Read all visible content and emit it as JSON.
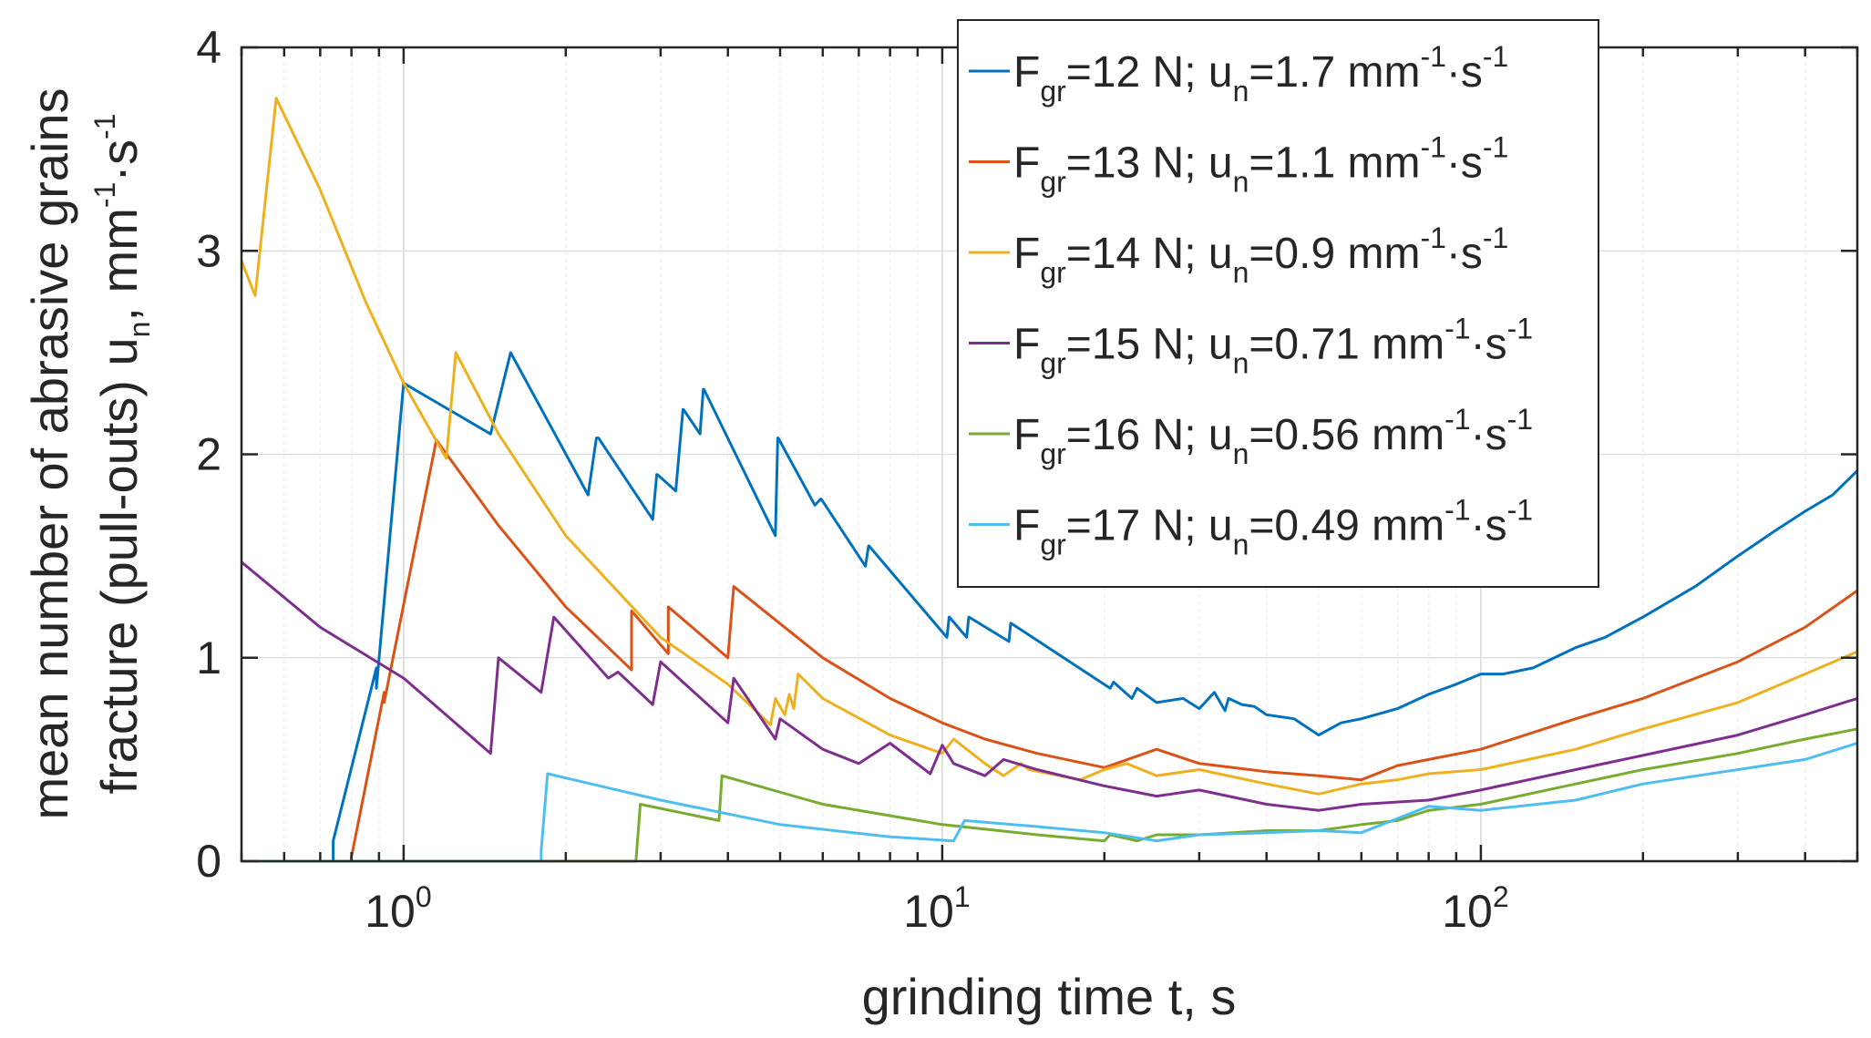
{
  "chart_data": {
    "type": "line",
    "title": "",
    "xlabel": "grinding time t, s",
    "ylabel_line1": "mean number of abrasive grains",
    "ylabel_line2": "fracture (pull-outs) u",
    "ylabel_line2_sub": "n",
    "ylabel_line2_unit": ", mm",
    "ylabel_line2_unit_sup1": "-1",
    "ylabel_line2_unit_dot": "·s",
    "ylabel_line2_unit_sup2": "-1",
    "xscale": "log",
    "xlim": [
      0.5,
      500
    ],
    "ylim": [
      0,
      4
    ],
    "xticks": [
      {
        "value": 1,
        "base": "10",
        "exp": "0"
      },
      {
        "value": 10,
        "base": "10",
        "exp": "1"
      },
      {
        "value": 100,
        "base": "10",
        "exp": "2"
      }
    ],
    "yticks": [
      {
        "value": 0,
        "label": "0"
      },
      {
        "value": 1,
        "label": "1"
      },
      {
        "value": 2,
        "label": "2"
      },
      {
        "value": 3,
        "label": "3"
      },
      {
        "value": 4,
        "label": "4"
      }
    ],
    "grid": true,
    "legend_position": "top-right",
    "series": [
      {
        "color": "#0072BD",
        "legend": {
          "f": "F",
          "f_sub": "gr",
          "f_val": "=12 N; u",
          "u_sub": "n",
          "u_val": "=1.7 mm",
          "sup1": "-1",
          "dot": "·s",
          "sup2": "-1"
        },
        "x": [
          0.5,
          0.74,
          0.74,
          0.89,
          0.89,
          1.0,
          1.0,
          1.45,
          1.58,
          1.58,
          2.2,
          2.28,
          2.3,
          2.9,
          2.95,
          2.96,
          3.2,
          3.3,
          3.31,
          3.55,
          3.6,
          3.61,
          4.9,
          4.95,
          4.96,
          5.8,
          5.95,
          5.96,
          7.2,
          7.3,
          7.31,
          10.2,
          10.3,
          10.31,
          11.1,
          11.2,
          11.21,
          13.3,
          13.4,
          13.41,
          20.5,
          20.8,
          22.5,
          23.0,
          25,
          28,
          30,
          32,
          33.5,
          34,
          36,
          38,
          40,
          45,
          50,
          55,
          60,
          70,
          80,
          90,
          100,
          110,
          125,
          150,
          170,
          200,
          250,
          300,
          350,
          400,
          450,
          500
        ],
        "y": [
          0,
          0,
          0.1,
          0.95,
          0.85,
          2.35,
          2.35,
          2.1,
          2.5,
          2.5,
          1.8,
          2.08,
          2.08,
          1.68,
          1.9,
          1.9,
          1.82,
          2.22,
          2.22,
          2.1,
          2.32,
          2.32,
          1.6,
          2.08,
          2.08,
          1.75,
          1.78,
          1.78,
          1.45,
          1.55,
          1.55,
          1.1,
          1.2,
          1.2,
          1.1,
          1.2,
          1.2,
          1.08,
          1.17,
          1.17,
          0.85,
          0.88,
          0.8,
          0.85,
          0.78,
          0.8,
          0.75,
          0.83,
          0.74,
          0.8,
          0.77,
          0.76,
          0.72,
          0.7,
          0.62,
          0.68,
          0.7,
          0.75,
          0.82,
          0.87,
          0.92,
          0.92,
          0.95,
          1.05,
          1.1,
          1.2,
          1.35,
          1.5,
          1.62,
          1.72,
          1.8,
          1.92
        ]
      },
      {
        "color": "#D95319",
        "legend": {
          "f": "F",
          "f_sub": "gr",
          "f_val": "=13 N; u",
          "u_sub": "n",
          "u_val": "=1.1 mm",
          "sup1": "-1",
          "dot": "·s",
          "sup2": "-1"
        },
        "x": [
          0.5,
          0.8,
          0.8,
          0.92,
          0.92,
          1.15,
          1.5,
          2.0,
          2.65,
          2.65,
          3.1,
          3.1,
          4.0,
          4.1,
          4.1,
          6.0,
          8.0,
          10.0,
          12.0,
          15.0,
          20.0,
          25.0,
          30.0,
          40.0,
          50.0,
          60.0,
          70.0,
          80.0,
          100.0,
          150.0,
          200.0,
          300.0,
          400.0,
          500.0
        ],
        "y": [
          0,
          0,
          0.02,
          0.83,
          0.78,
          2.07,
          1.65,
          1.25,
          0.94,
          1.23,
          1.02,
          1.25,
          1.0,
          1.35,
          1.35,
          1.0,
          0.8,
          0.68,
          0.6,
          0.53,
          0.46,
          0.55,
          0.48,
          0.44,
          0.42,
          0.4,
          0.47,
          0.5,
          0.55,
          0.7,
          0.8,
          0.98,
          1.15,
          1.33
        ]
      },
      {
        "color": "#EDB120",
        "legend": {
          "f": "F",
          "f_sub": "gr",
          "f_val": "=14 N; u",
          "u_sub": "n",
          "u_val": "=0.9 mm",
          "sup1": "-1",
          "dot": "·s",
          "sup2": "-1"
        },
        "x": [
          0.5,
          0.53,
          0.58,
          0.7,
          0.85,
          1.0,
          1.2,
          1.25,
          1.5,
          2.0,
          3.0,
          4.0,
          4.8,
          4.9,
          5.1,
          5.2,
          5.3,
          5.4,
          6.0,
          8.0,
          10.0,
          10.5,
          12.0,
          13.0,
          14.0,
          14.5,
          18.0,
          20.0,
          22.0,
          25.0,
          30.0,
          40.0,
          50.0,
          60.0,
          70.0,
          80.0,
          100.0,
          150.0,
          200.0,
          300.0,
          400.0,
          500.0
        ],
        "y": [
          2.95,
          2.78,
          3.75,
          3.3,
          2.75,
          2.35,
          1.98,
          2.5,
          2.1,
          1.6,
          1.1,
          0.87,
          0.67,
          0.8,
          0.72,
          0.82,
          0.75,
          0.92,
          0.8,
          0.62,
          0.53,
          0.6,
          0.48,
          0.42,
          0.48,
          0.45,
          0.4,
          0.45,
          0.48,
          0.42,
          0.45,
          0.38,
          0.33,
          0.38,
          0.4,
          0.43,
          0.45,
          0.55,
          0.65,
          0.78,
          0.92,
          1.03
        ]
      },
      {
        "color": "#7E2F8E",
        "legend": {
          "f": "F",
          "f_sub": "gr",
          "f_val": "=15 N; u",
          "u_sub": "n",
          "u_val": "=0.71 mm",
          "sup1": "-1",
          "dot": "·s",
          "sup2": "-1"
        },
        "x": [
          0.5,
          0.7,
          1.0,
          1.45,
          1.5,
          1.8,
          1.9,
          2.4,
          2.5,
          2.9,
          3.0,
          4.0,
          4.1,
          4.9,
          5.0,
          6.0,
          7.0,
          8.0,
          9.5,
          10.0,
          10.5,
          12.0,
          13.0,
          15.0,
          20.0,
          25.0,
          30.0,
          40.0,
          50.0,
          60.0,
          80.0,
          100.0,
          150.0,
          200.0,
          300.0,
          400.0,
          500.0
        ],
        "y": [
          1.47,
          1.15,
          0.9,
          0.53,
          1.0,
          0.83,
          1.2,
          0.9,
          0.93,
          0.77,
          0.98,
          0.68,
          0.9,
          0.6,
          0.7,
          0.55,
          0.48,
          0.58,
          0.43,
          0.57,
          0.48,
          0.42,
          0.5,
          0.45,
          0.37,
          0.32,
          0.35,
          0.28,
          0.25,
          0.28,
          0.3,
          0.35,
          0.45,
          0.52,
          0.62,
          0.72,
          0.8
        ]
      },
      {
        "color": "#77AC30",
        "legend": {
          "f": "F",
          "f_sub": "gr",
          "f_val": "=16 N; u",
          "u_sub": "n",
          "u_val": "=0.56 mm",
          "sup1": "-1",
          "dot": "·s",
          "sup2": "-1"
        },
        "x": [
          0.5,
          2.7,
          2.75,
          3.85,
          3.9,
          6.0,
          10.0,
          15.0,
          20.0,
          20.5,
          23.0,
          25.0,
          30.0,
          40.0,
          50.0,
          60.0,
          70.0,
          80.0,
          100.0,
          150.0,
          200.0,
          300.0,
          400.0,
          500.0
        ],
        "y": [
          0,
          0,
          0.28,
          0.2,
          0.42,
          0.28,
          0.18,
          0.13,
          0.1,
          0.13,
          0.1,
          0.13,
          0.13,
          0.15,
          0.15,
          0.18,
          0.2,
          0.25,
          0.28,
          0.38,
          0.45,
          0.53,
          0.6,
          0.65
        ]
      },
      {
        "color": "#4DBEEE",
        "legend": {
          "f": "F",
          "f_sub": "gr",
          "f_val": "=17 N; u",
          "u_sub": "n",
          "u_val": "=0.49 mm",
          "sup1": "-1",
          "dot": "·s",
          "sup2": "-1"
        },
        "x": [
          0.5,
          1.8,
          1.8,
          1.85,
          3.0,
          5.0,
          8.0,
          10.5,
          11.0,
          15.0,
          20.0,
          25.0,
          30.0,
          40.0,
          50.0,
          60.0,
          80.0,
          100.0,
          150.0,
          200.0,
          300.0,
          400.0,
          500.0
        ],
        "y": [
          0,
          0,
          0.05,
          0.43,
          0.3,
          0.18,
          0.12,
          0.1,
          0.2,
          0.17,
          0.14,
          0.1,
          0.13,
          0.14,
          0.15,
          0.14,
          0.27,
          0.25,
          0.3,
          0.38,
          0.45,
          0.5,
          0.58
        ]
      }
    ]
  }
}
